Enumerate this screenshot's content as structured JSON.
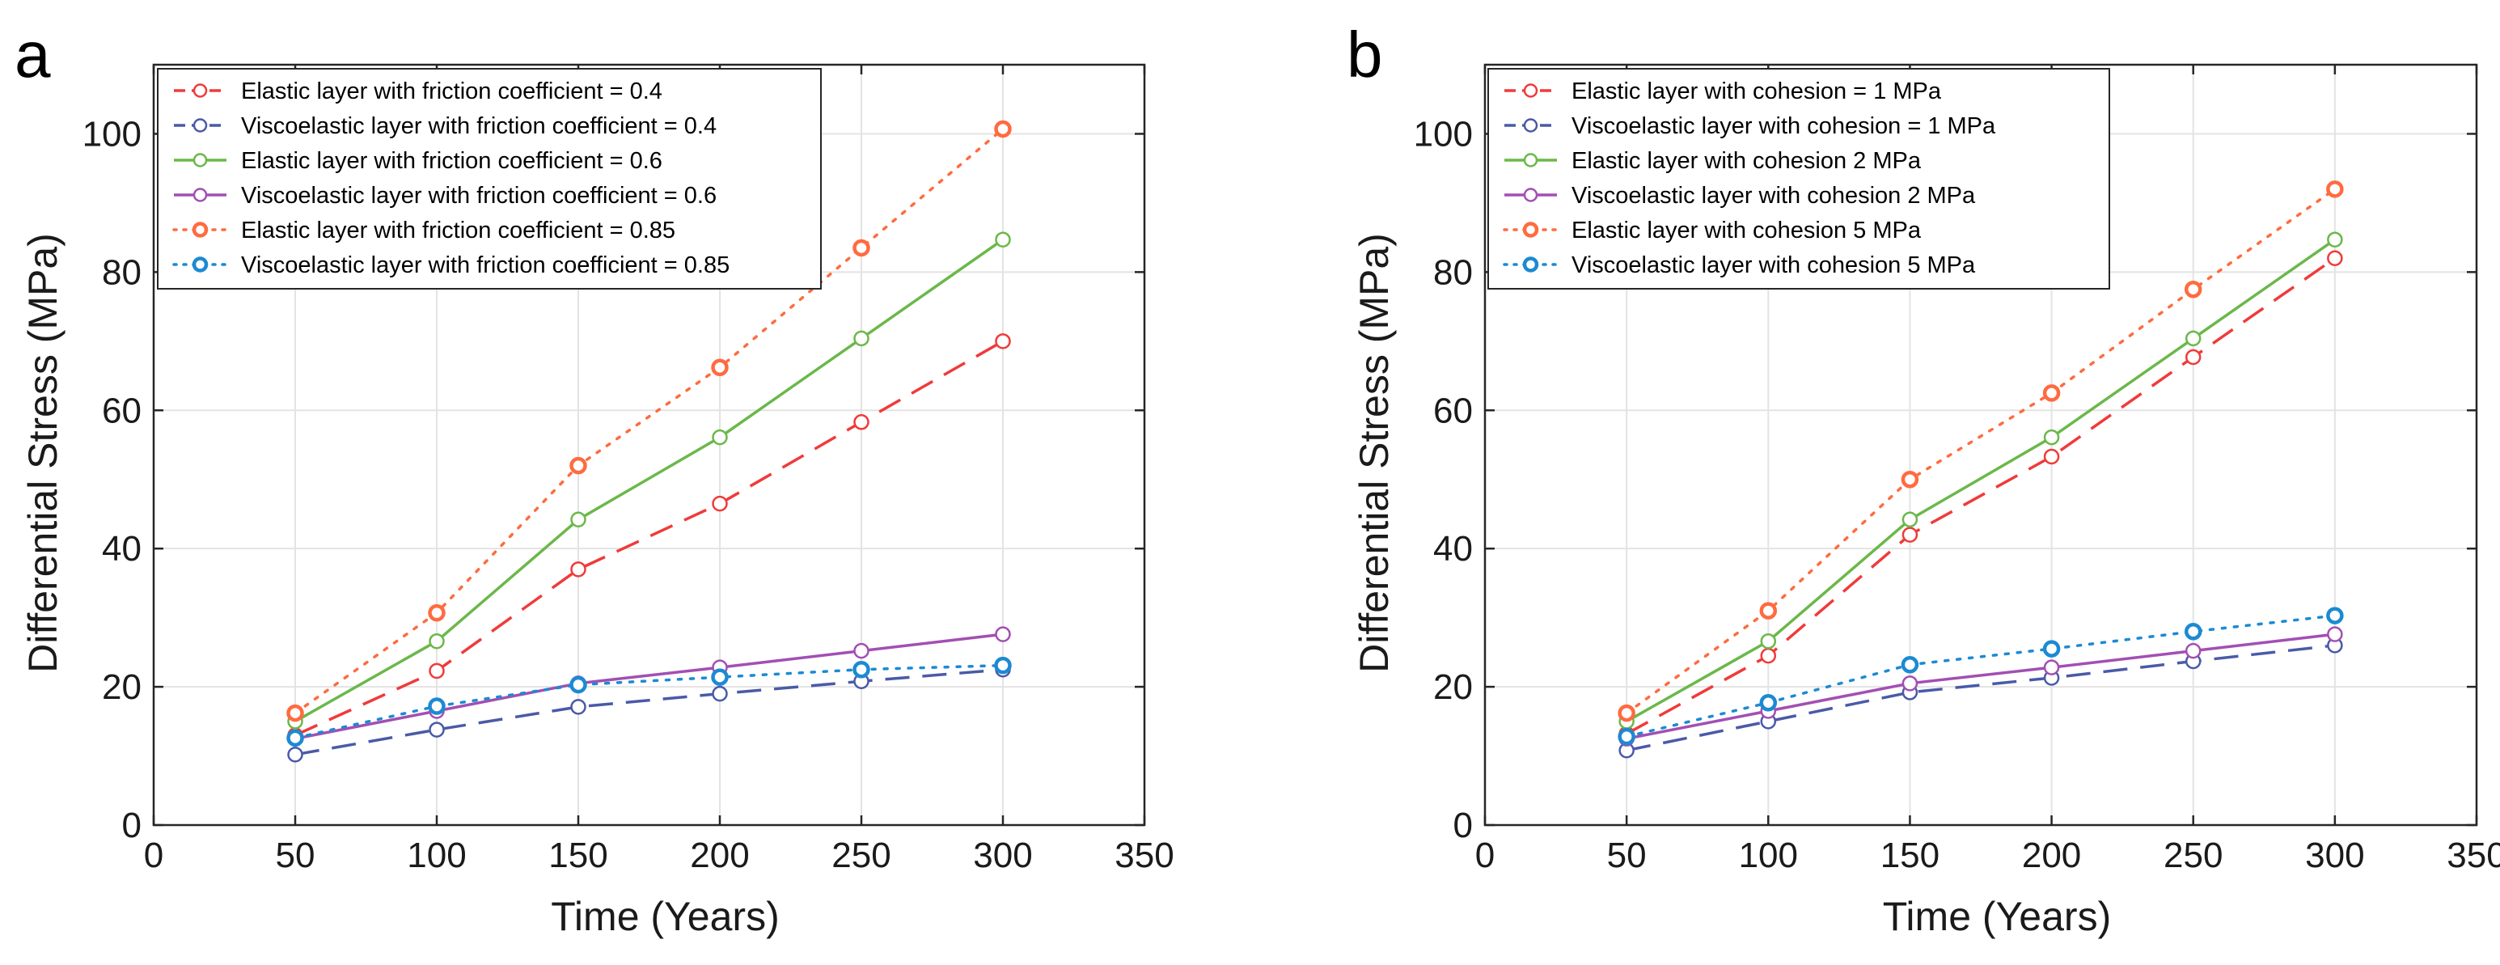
{
  "figure": {
    "panels": [
      "a",
      "b"
    ]
  },
  "chart_data": [
    {
      "type": "line",
      "panel_label": "a",
      "xlabel": "Time (Years)",
      "ylabel": "Differential Stress (MPa)",
      "xlim": [
        0,
        350
      ],
      "ylim": [
        0,
        110
      ],
      "xticks": [
        0,
        50,
        100,
        150,
        200,
        250,
        300,
        350
      ],
      "yticks": [
        0,
        20,
        40,
        60,
        80,
        100
      ],
      "grid": true,
      "legend_position": "top-left",
      "x": [
        50,
        100,
        150,
        200,
        250,
        300
      ],
      "series": [
        {
          "name": "Elastic layer with friction coefficient = 0.4",
          "values": [
            13,
            22.3,
            37,
            46.5,
            58.3,
            70
          ],
          "color": "#f03a3a",
          "dash": "dashed",
          "marker_width": 2.5
        },
        {
          "name": "Viscoelastic layer with friction coefficient = 0.4",
          "values": [
            10.2,
            13.8,
            17.1,
            19,
            20.8,
            22.5
          ],
          "color": "#4a5aa8",
          "dash": "dashed",
          "marker_width": 2.5
        },
        {
          "name": "Elastic layer with friction coefficient = 0.6",
          "values": [
            15,
            26.6,
            44.2,
            56.1,
            70.4,
            84.7
          ],
          "color": "#6bb84a",
          "dash": "solid",
          "marker_width": 2.5
        },
        {
          "name": "Viscoelastic layer with friction coefficient = 0.6",
          "values": [
            12.5,
            16.5,
            20.5,
            22.8,
            25.2,
            27.6
          ],
          "color": "#a24fb3",
          "dash": "solid",
          "marker_width": 2.5
        },
        {
          "name": "Elastic layer with friction coefficient = 0.85",
          "values": [
            16.2,
            30.7,
            52,
            66.2,
            83.5,
            100.7
          ],
          "color": "#ff6b3f",
          "dash": "dotted",
          "marker_width": 4.5
        },
        {
          "name": "Viscoelastic layer with friction coefficient = 0.85",
          "values": [
            12.6,
            17.2,
            20.3,
            21.4,
            22.5,
            23.1
          ],
          "color": "#1c8ad2",
          "dash": "dotted",
          "marker_width": 4.5
        }
      ]
    },
    {
      "type": "line",
      "panel_label": "b",
      "xlabel": "Time (Years)",
      "ylabel": "Differential Stress (MPa)",
      "xlim": [
        0,
        350
      ],
      "ylim": [
        0,
        110
      ],
      "xticks": [
        0,
        50,
        100,
        150,
        200,
        250,
        300,
        350
      ],
      "yticks": [
        0,
        20,
        40,
        60,
        80,
        100
      ],
      "grid": true,
      "legend_position": "top-left",
      "x": [
        50,
        100,
        150,
        200,
        250,
        300
      ],
      "series": [
        {
          "name": "Elastic layer with cohesion = 1 MPa",
          "values": [
            13.2,
            24.5,
            42,
            53.3,
            67.7,
            82
          ],
          "color": "#f03a3a",
          "dash": "dashed",
          "marker_width": 2.5
        },
        {
          "name": "Viscoelastic layer with cohesion = 1 MPa",
          "values": [
            10.8,
            15,
            19.2,
            21.3,
            23.7,
            26
          ],
          "color": "#4a5aa8",
          "dash": "dashed",
          "marker_width": 2.5
        },
        {
          "name": "Elastic layer with cohesion 2 MPa",
          "values": [
            15,
            26.6,
            44.2,
            56.1,
            70.4,
            84.7
          ],
          "color": "#6bb84a",
          "dash": "solid",
          "marker_width": 2.5
        },
        {
          "name": "Viscoelastic layer with cohesion 2 MPa",
          "values": [
            12.5,
            16.5,
            20.5,
            22.8,
            25.2,
            27.6
          ],
          "color": "#a24fb3",
          "dash": "solid",
          "marker_width": 2.5
        },
        {
          "name": "Elastic layer with cohesion 5 MPa",
          "values": [
            16.2,
            31,
            50,
            62.5,
            77.5,
            92
          ],
          "color": "#ff6b3f",
          "dash": "dotted",
          "marker_width": 4.5
        },
        {
          "name": "Viscoelastic layer with cohesion 5 MPa",
          "values": [
            12.8,
            17.7,
            23.2,
            25.5,
            28,
            30.3
          ],
          "color": "#1c8ad2",
          "dash": "dotted",
          "marker_width": 4.5
        }
      ]
    }
  ]
}
